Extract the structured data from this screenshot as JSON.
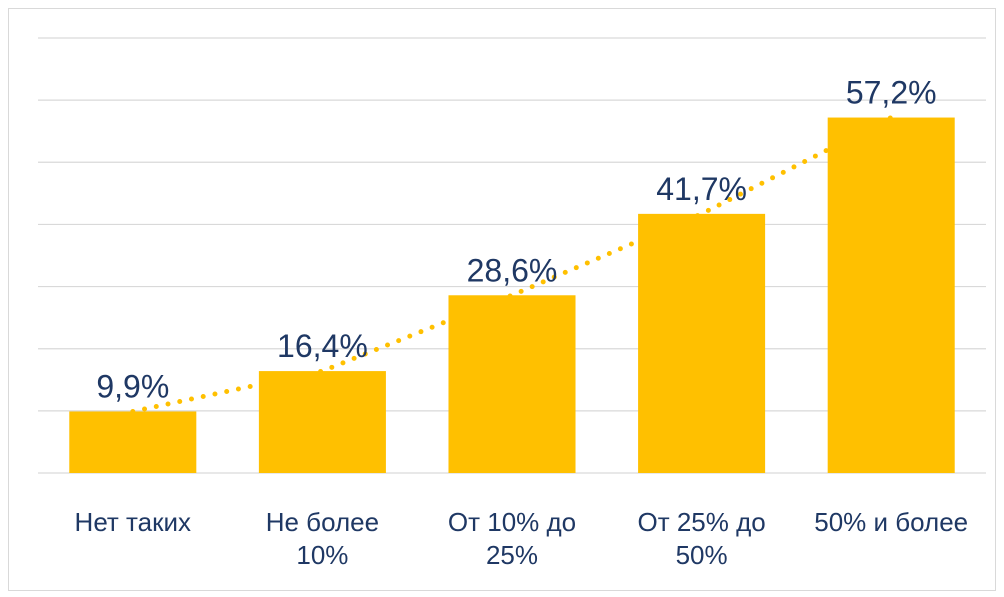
{
  "chart_data": {
    "type": "bar",
    "categories": [
      "Нет таких",
      "Не более 10%",
      "От 10% до 25%",
      "От 25% до 50%",
      "50% и более"
    ],
    "values": [
      9.9,
      16.4,
      28.6,
      41.7,
      57.2
    ],
    "value_labels": [
      "9,9%",
      "16,4%",
      "28,6%",
      "41,7%",
      "57,2%"
    ],
    "color": "#FFC000",
    "ylim": [
      0,
      70
    ],
    "yticks": [
      0,
      10,
      20,
      30,
      40,
      50,
      60,
      70
    ],
    "grid": true
  }
}
